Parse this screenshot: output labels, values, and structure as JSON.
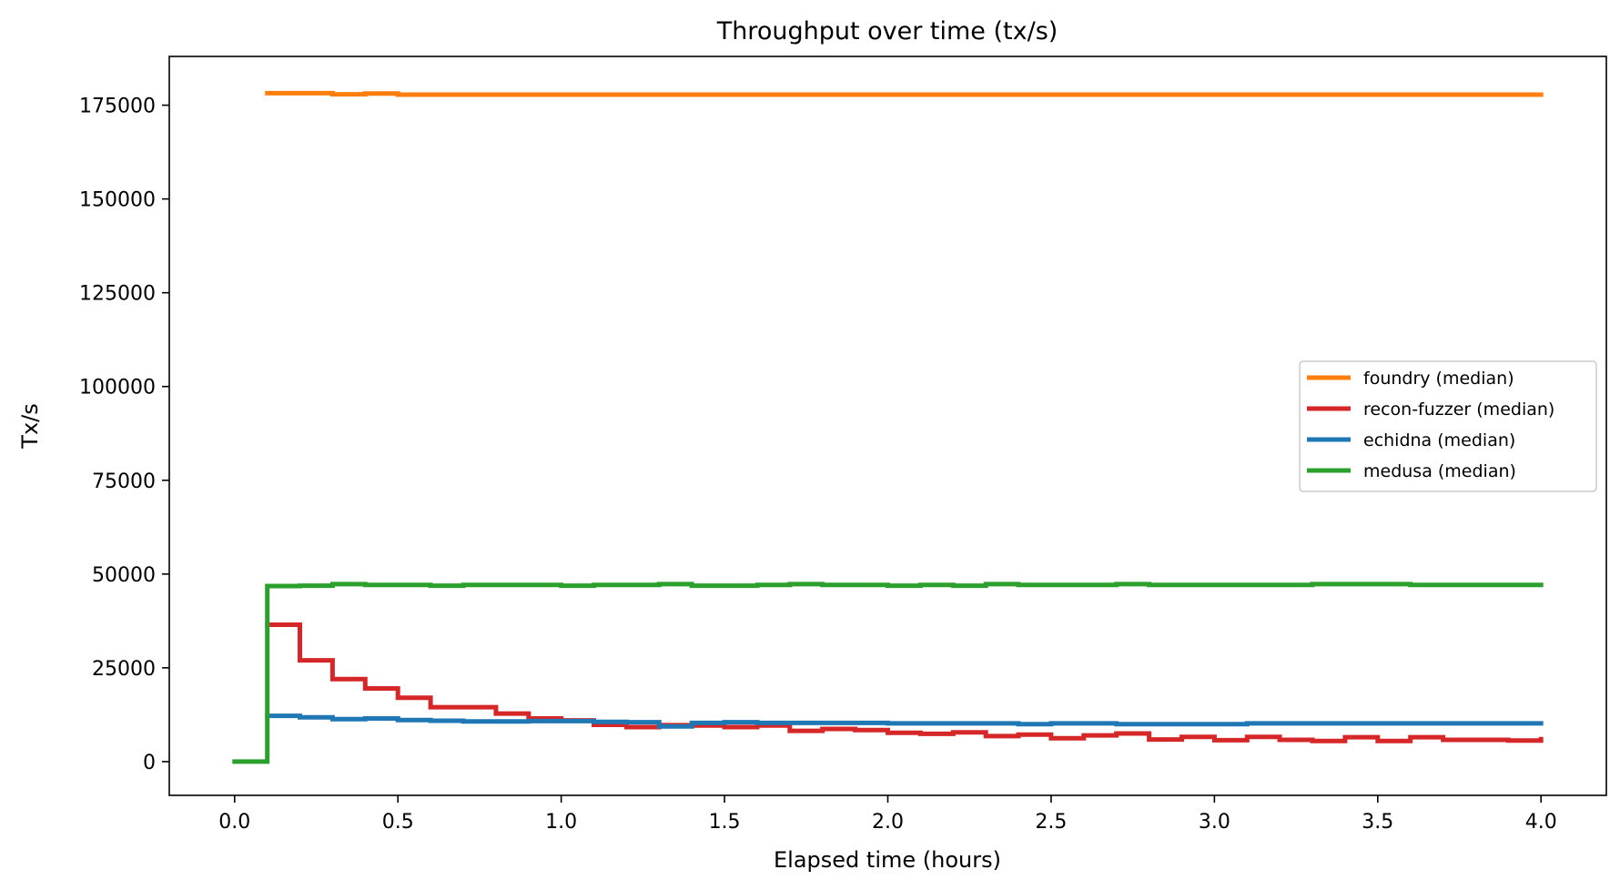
{
  "chart_data": {
    "type": "line",
    "title": "Throughput over time (tx/s)",
    "xlabel": "Elapsed time (hours)",
    "ylabel": "Tx/s",
    "xlim": [
      -0.2,
      4.2
    ],
    "ylim": [
      -9000,
      188000
    ],
    "xticks": [
      0.0,
      0.5,
      1.0,
      1.5,
      2.0,
      2.5,
      3.0,
      3.5,
      4.0
    ],
    "xtick_labels": [
      "0.0",
      "0.5",
      "1.0",
      "1.5",
      "2.0",
      "2.5",
      "3.0",
      "3.5",
      "4.0"
    ],
    "yticks": [
      0,
      25000,
      50000,
      75000,
      100000,
      125000,
      150000,
      175000
    ],
    "ytick_labels": [
      "0",
      "25000",
      "50000",
      "75000",
      "100000",
      "125000",
      "150000",
      "175000"
    ],
    "grid": false,
    "legend_position": "center-right",
    "step": "post",
    "series": [
      {
        "name": "foundry (median)",
        "color": "#ff7f0e",
        "x": [
          0.1,
          0.2,
          0.3,
          0.4,
          0.5,
          0.6,
          0.7,
          0.8,
          0.9,
          1.0,
          1.1,
          1.2,
          1.3,
          1.4,
          1.5,
          1.6,
          1.7,
          1.8,
          1.9,
          2.0,
          2.1,
          2.2,
          2.3,
          2.4,
          2.5,
          2.6,
          2.7,
          2.8,
          2.9,
          3.0,
          3.1,
          3.2,
          3.3,
          3.4,
          3.5,
          3.6,
          3.7,
          3.8,
          3.9,
          4.0
        ],
        "y": [
          178200,
          178200,
          177900,
          178100,
          177800,
          177800,
          177800,
          177800,
          177800,
          177800,
          177800,
          177800,
          177800,
          177800,
          177800,
          177800,
          177800,
          177800,
          177800,
          177800,
          177800,
          177800,
          177800,
          177800,
          177800,
          177800,
          177800,
          177800,
          177800,
          177800,
          177800,
          177800,
          177800,
          177800,
          177800,
          177800,
          177800,
          177800,
          177800,
          177800
        ]
      },
      {
        "name": "recon-fuzzer (median)",
        "color": "#d62728",
        "x": [
          0.1,
          0.2,
          0.3,
          0.4,
          0.5,
          0.6,
          0.7,
          0.8,
          0.9,
          1.0,
          1.1,
          1.2,
          1.3,
          1.4,
          1.5,
          1.6,
          1.7,
          1.8,
          1.9,
          2.0,
          2.1,
          2.2,
          2.3,
          2.4,
          2.5,
          2.6,
          2.7,
          2.8,
          2.9,
          3.0,
          3.1,
          3.2,
          3.3,
          3.4,
          3.5,
          3.6,
          3.7,
          3.8,
          3.9,
          4.0
        ],
        "y": [
          36500,
          27000,
          22000,
          19500,
          17000,
          14500,
          14500,
          12800,
          11500,
          11000,
          9800,
          9200,
          9700,
          9600,
          9200,
          9600,
          8200,
          8700,
          8400,
          7700,
          7400,
          7800,
          6800,
          7200,
          6200,
          7000,
          7500,
          5900,
          6600,
          5700,
          6600,
          5800,
          5500,
          6500,
          5500,
          6500,
          5800,
          5800,
          5600,
          6000
        ]
      },
      {
        "name": "echidna (median)",
        "color": "#1f77b4",
        "x": [
          0.1,
          0.2,
          0.3,
          0.4,
          0.5,
          0.6,
          0.7,
          0.8,
          0.9,
          1.0,
          1.1,
          1.2,
          1.3,
          1.4,
          1.5,
          1.6,
          1.7,
          1.8,
          1.9,
          2.0,
          2.1,
          2.2,
          2.3,
          2.4,
          2.5,
          2.6,
          2.7,
          2.8,
          2.9,
          3.0,
          3.1,
          3.2,
          3.3,
          3.4,
          3.5,
          3.6,
          3.7,
          3.8,
          3.9,
          4.0
        ],
        "y": [
          12200,
          11800,
          11300,
          11500,
          11100,
          10900,
          10700,
          10700,
          10800,
          10800,
          10600,
          10500,
          9400,
          10300,
          10500,
          10300,
          10300,
          10300,
          10300,
          10200,
          10200,
          10200,
          10200,
          10000,
          10200,
          10200,
          10000,
          10000,
          10000,
          10000,
          10200,
          10200,
          10200,
          10200,
          10200,
          10200,
          10200,
          10200,
          10200,
          10200
        ]
      },
      {
        "name": "medusa (median)",
        "color": "#2ca02c",
        "x": [
          0.0,
          0.1,
          0.2,
          0.3,
          0.4,
          0.5,
          0.6,
          0.7,
          0.8,
          0.9,
          1.0,
          1.1,
          1.2,
          1.3,
          1.4,
          1.5,
          1.6,
          1.7,
          1.8,
          1.9,
          2.0,
          2.1,
          2.2,
          2.3,
          2.4,
          2.5,
          2.6,
          2.7,
          2.8,
          2.9,
          3.0,
          3.1,
          3.2,
          3.3,
          3.4,
          3.5,
          3.6,
          3.7,
          3.8,
          3.9,
          4.0
        ],
        "y": [
          0,
          46800,
          46900,
          47300,
          47100,
          47100,
          46900,
          47100,
          47100,
          47100,
          46900,
          47100,
          47100,
          47300,
          46900,
          46900,
          47100,
          47300,
          47100,
          47100,
          46900,
          47100,
          46900,
          47300,
          47100,
          47100,
          47100,
          47300,
          47100,
          47100,
          47100,
          47100,
          47100,
          47300,
          47300,
          47300,
          47100,
          47100,
          47100,
          47100,
          47100
        ]
      }
    ]
  }
}
